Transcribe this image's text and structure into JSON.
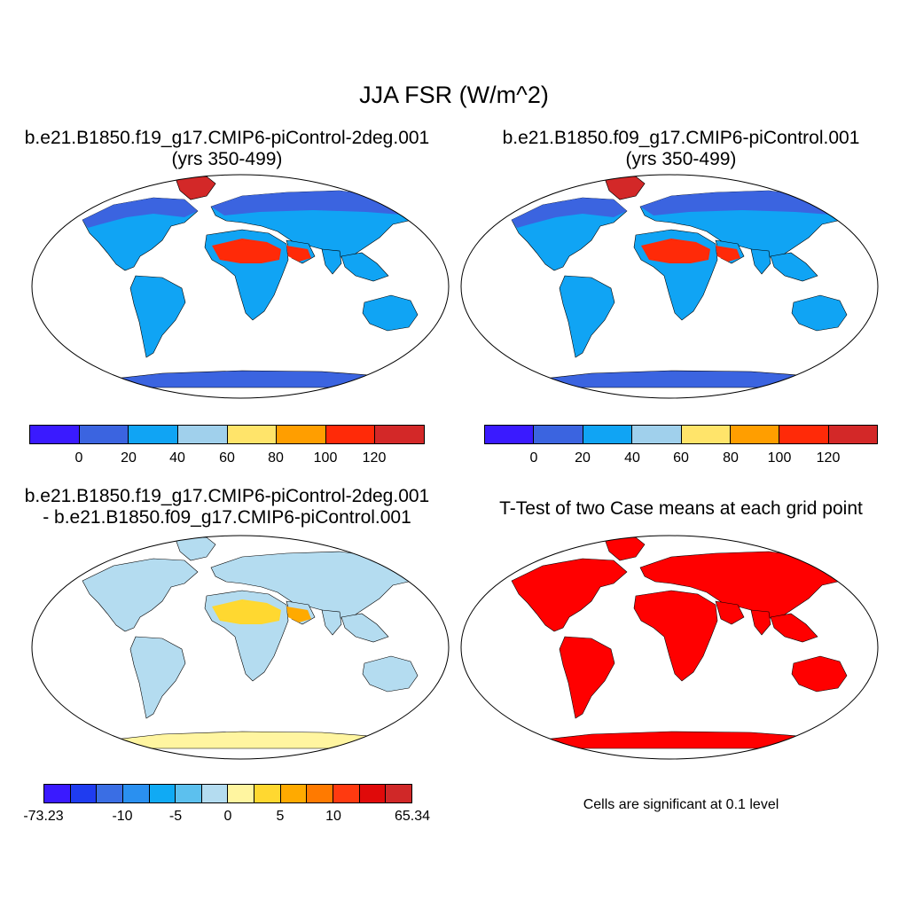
{
  "title": "JJA FSR (W/m^2)",
  "panels": [
    {
      "id": "p1",
      "title_line1": "b.e21.B1850.f19_g17.CMIP6-piControl-2deg.001",
      "title_line2": "(yrs 350-499)"
    },
    {
      "id": "p2",
      "title_line1": "b.e21.B1850.f09_g17.CMIP6-piControl.001",
      "title_line2": "(yrs 350-499)"
    },
    {
      "id": "p3",
      "title_line1": "b.e21.B1850.f19_g17.CMIP6-piControl-2deg.001",
      "title_line2": "- b.e21.B1850.f09_g17.CMIP6-piControl.001"
    },
    {
      "id": "p4",
      "title_line1": "T-Test of two Case means at each grid point"
    }
  ],
  "colorbar_main": {
    "colors": [
      "#3a1aff",
      "#3b64e0",
      "#10a4f4",
      "#a0d0ec",
      "#ffe46a",
      "#ff9e00",
      "#ff2a08",
      "#d32828"
    ],
    "labels": [
      "0",
      "20",
      "40",
      "60",
      "80",
      "100",
      "120"
    ]
  },
  "colorbar_diff": {
    "colors": [
      "#3a1aff",
      "#1f3cf0",
      "#3a6ee4",
      "#2a90f0",
      "#10aaf4",
      "#5cc0ee",
      "#b4dcf0",
      "#fff5a0",
      "#ffd830",
      "#ffaa00",
      "#ff7a00",
      "#ff3a10",
      "#e00a0a",
      "#d02828"
    ],
    "labels": [
      "-73.23",
      "-10",
      "-5",
      "0",
      "5",
      "10",
      "65.34"
    ]
  },
  "significance_note": "Cells are significant at 0.1 level",
  "significance_color": "#ff0000",
  "map_land_colors": {
    "dominant": "#10a4f4",
    "high_lat": "#3b64e0",
    "desert": "#ff2a08",
    "diff_base": "#b4dcf0"
  }
}
